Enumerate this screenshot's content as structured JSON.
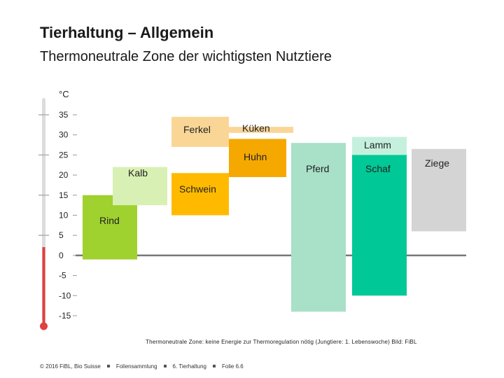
{
  "header": {
    "title": "Tierhaltung – Allgemein",
    "subtitle": "Thermoneutrale Zone der wichtigsten Nutztiere"
  },
  "chart_data": {
    "type": "bar",
    "subtype": "floating-range",
    "unit_label": "°C",
    "yticks": [
      "35",
      "30",
      "25",
      "20",
      "15",
      "10",
      "5",
      "0",
      "-5",
      "-10",
      "-15"
    ],
    "ylim": [
      -15,
      35
    ],
    "grid": false,
    "series": [
      {
        "name": "Rind",
        "low": -1,
        "high": 15,
        "color": "#9fd12f"
      },
      {
        "name": "Kalb",
        "low": 12.5,
        "high": 22,
        "color": "#d9f0b4"
      },
      {
        "name": "Ferkel",
        "low": 27,
        "high": 34.5,
        "color": "#fad696"
      },
      {
        "name": "Schwein",
        "low": 10,
        "high": 20.5,
        "color": "#ffba00"
      },
      {
        "name": "Küken",
        "low": 30.5,
        "high": 32,
        "color": "#fad696"
      },
      {
        "name": "Huhn",
        "low": 19.5,
        "high": 29,
        "color": "#f5a800"
      },
      {
        "name": "Pferd",
        "low": -14,
        "high": 28,
        "color": "#a8e0c8"
      },
      {
        "name": "Lamm",
        "low": 25,
        "high": 29.5,
        "color": "#c5f0de"
      },
      {
        "name": "Schaf",
        "low": -10,
        "high": 26,
        "color": "#00c896"
      },
      {
        "name": "Ziege",
        "low": 6,
        "high": 26.5,
        "color": "#d4d4d4"
      }
    ]
  },
  "footnote": "Thermoneutrale Zone: keine Energie zur Thermoregulation nötig (Jungtiere: 1. Lebenswoche)  Bild: FiBL",
  "footer": {
    "copyright": "© 2016 FiBL, Bio Suisse",
    "collection": "Foliensammlung",
    "chapter": "6. Tierhaltung",
    "slide": "Folie 6.6"
  }
}
